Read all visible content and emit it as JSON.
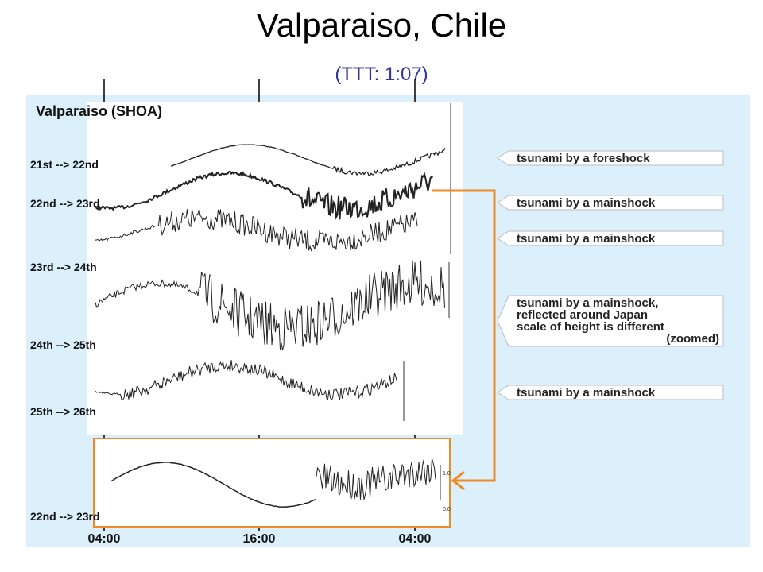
{
  "header": {
    "title": "Valparaiso, Chile",
    "subtitle": "(TTT: 1:07)"
  },
  "record": {
    "title": "Valparaiso (SHOA)",
    "rows": [
      "21st --> 22nd",
      "22nd --> 23rd",
      "23rd --> 24th",
      "24th --> 25th",
      "25th --> 26th"
    ],
    "zoomed_row": "22nd --> 23rd",
    "zoomed_scale": [
      "1.0",
      "0.0"
    ],
    "time_axis": [
      "04:00",
      "16:00",
      "04:00"
    ]
  },
  "callouts": [
    {
      "lines": [
        "tsunami by a foreshock"
      ]
    },
    {
      "lines": [
        "tsunami by a mainshock"
      ]
    },
    {
      "lines": [
        "tsunami by a mainshock"
      ]
    },
    {
      "lines": [
        "tsunami by a mainshock,",
        "reflected around Japan",
        "scale of height is different",
        "(zoomed)"
      ]
    },
    {
      "lines": [
        "tsunami by a mainshock"
      ]
    }
  ]
}
